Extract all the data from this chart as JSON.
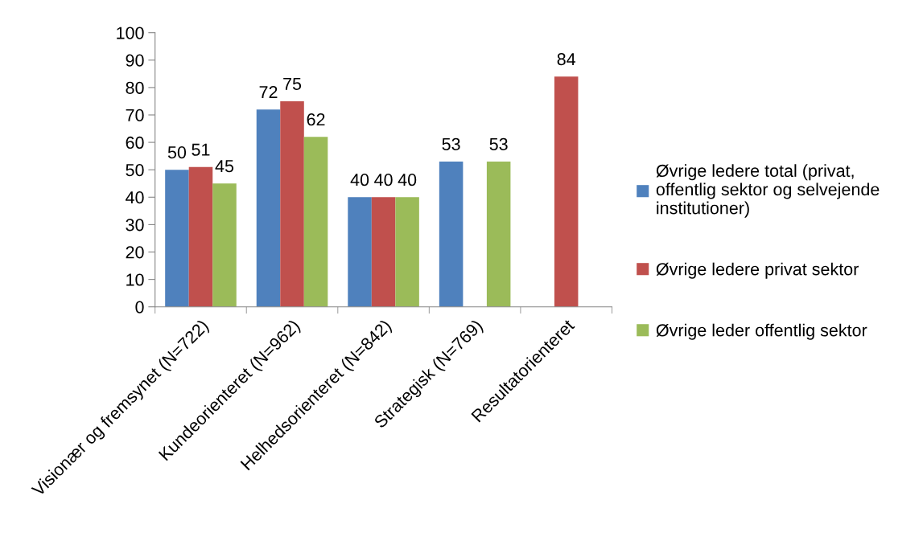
{
  "chart_data": {
    "type": "bar",
    "categories": [
      "Visionær og fremsynet (N=722)",
      "Kundeorienteret (N=962)",
      "Helhedsorienteret (N=842)",
      "Strategisk (N=769)",
      "Resultatorienteret"
    ],
    "series": [
      {
        "name": "Øvrige ledere total (privat, offentlig sektor og selvejende institutioner)",
        "color": "#4f81bd",
        "values": [
          50,
          72,
          40,
          53,
          null
        ]
      },
      {
        "name": "Øvrige ledere privat sektor",
        "color": "#c0504d",
        "values": [
          51,
          75,
          40,
          null,
          84
        ]
      },
      {
        "name": "Øvrige leder offentlig sektor",
        "color": "#9bbb59",
        "values": [
          45,
          62,
          40,
          53,
          null
        ]
      }
    ],
    "ylim": [
      0,
      100
    ],
    "yticks": [
      0,
      10,
      20,
      30,
      40,
      50,
      60,
      70,
      80,
      90,
      100
    ],
    "data_labels": true,
    "legend": "right"
  }
}
